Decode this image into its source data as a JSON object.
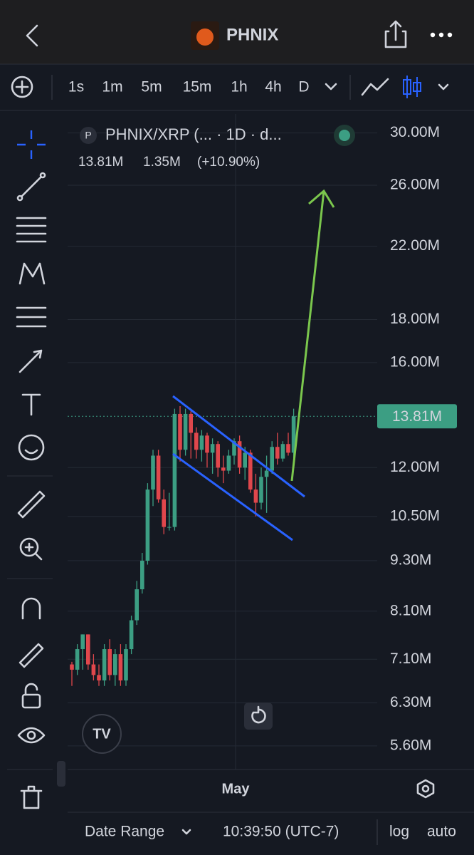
{
  "header": {
    "title": "PHNIX"
  },
  "toolbar": {
    "intervals": [
      "1s",
      "1m",
      "5m",
      "15m",
      "1h",
      "4h",
      "D"
    ],
    "active_interval": 6
  },
  "chart_data": {
    "type": "candlestick",
    "title": "PHNIX/XRP (... · 1D · d...",
    "symbol_badge": "P",
    "quote": [
      "13.81M",
      "1.35M",
      "(+10.90%)"
    ],
    "log_scale": true,
    "grid": true,
    "up_color": "#3c9e83",
    "down_color": "#e0474c",
    "ylim": [
      5.25,
      31.6
    ],
    "yticks": [
      {
        "value": 30,
        "label": "30.00M"
      },
      {
        "value": 26,
        "label": "26.00M"
      },
      {
        "value": 22,
        "label": "22.00M"
      },
      {
        "value": 18,
        "label": "18.00M"
      },
      {
        "value": 16,
        "label": "16.00M"
      },
      {
        "value": 12,
        "label": "12.00M"
      },
      {
        "value": 10.5,
        "label": "10.50M"
      },
      {
        "value": 9.3,
        "label": "9.30M"
      },
      {
        "value": 8.1,
        "label": "8.10M"
      },
      {
        "value": 7.1,
        "label": "7.10M"
      },
      {
        "value": 6.3,
        "label": "6.30M"
      },
      {
        "value": 5.6,
        "label": "5.60M"
      }
    ],
    "last_price": {
      "value": 13.81,
      "label": "13.81M"
    },
    "x_label": "May",
    "open": [
      7.0,
      6.9,
      7.3,
      7.6,
      7.0,
      6.8,
      6.7,
      7.3,
      6.8,
      7.2,
      6.7,
      7.3,
      7.9,
      8.6,
      9.3,
      11.3,
      12.4,
      11.0,
      10.2,
      10.2,
      13.9,
      12.6,
      13.9,
      13.2,
      12.6,
      13.1,
      12.5,
      12.8,
      12.0,
      11.9,
      12.4,
      12.9,
      12.0,
      12.5,
      11.3,
      10.9,
      11.7,
      11.9,
      12.7,
      12.3,
      12.8,
      12.5
    ],
    "high": [
      7.05,
      7.4,
      7.6,
      7.6,
      7.2,
      7.0,
      7.4,
      7.5,
      7.3,
      7.4,
      7.4,
      8.0,
      8.8,
      9.5,
      11.5,
      12.6,
      12.6,
      11.3,
      11.2,
      14.1,
      14.2,
      14.1,
      14.0,
      13.4,
      13.3,
      13.2,
      13.0,
      12.9,
      12.4,
      12.6,
      13.0,
      13.1,
      12.7,
      12.6,
      11.8,
      12.0,
      12.4,
      12.9,
      13.2,
      12.9,
      13.2,
      14.1
    ],
    "low": [
      6.6,
      6.8,
      6.9,
      6.9,
      6.7,
      6.6,
      6.6,
      6.7,
      6.6,
      6.6,
      6.6,
      7.2,
      7.8,
      8.5,
      9.2,
      10.8,
      10.9,
      10.0,
      10.1,
      10.1,
      12.2,
      12.4,
      12.3,
      12.3,
      12.2,
      12.0,
      11.8,
      11.7,
      11.5,
      11.8,
      12.1,
      11.8,
      11.6,
      11.2,
      10.5,
      10.7,
      10.6,
      11.8,
      12.1,
      12.2,
      12.4,
      12.3
    ],
    "close": [
      6.9,
      7.3,
      7.6,
      7.0,
      6.8,
      6.7,
      7.3,
      6.8,
      7.2,
      6.7,
      7.3,
      7.9,
      8.6,
      9.3,
      11.3,
      12.4,
      11.0,
      10.2,
      10.2,
      13.9,
      12.6,
      13.9,
      13.2,
      12.6,
      13.1,
      12.5,
      12.8,
      12.0,
      11.9,
      12.4,
      12.9,
      12.0,
      12.5,
      11.3,
      10.9,
      11.7,
      11.9,
      12.7,
      12.3,
      12.8,
      12.5,
      13.81
    ]
  },
  "footer": {
    "date_range": "Date Range",
    "time": "10:39:50 (UTC-7)",
    "log": "log",
    "auto": "auto"
  }
}
